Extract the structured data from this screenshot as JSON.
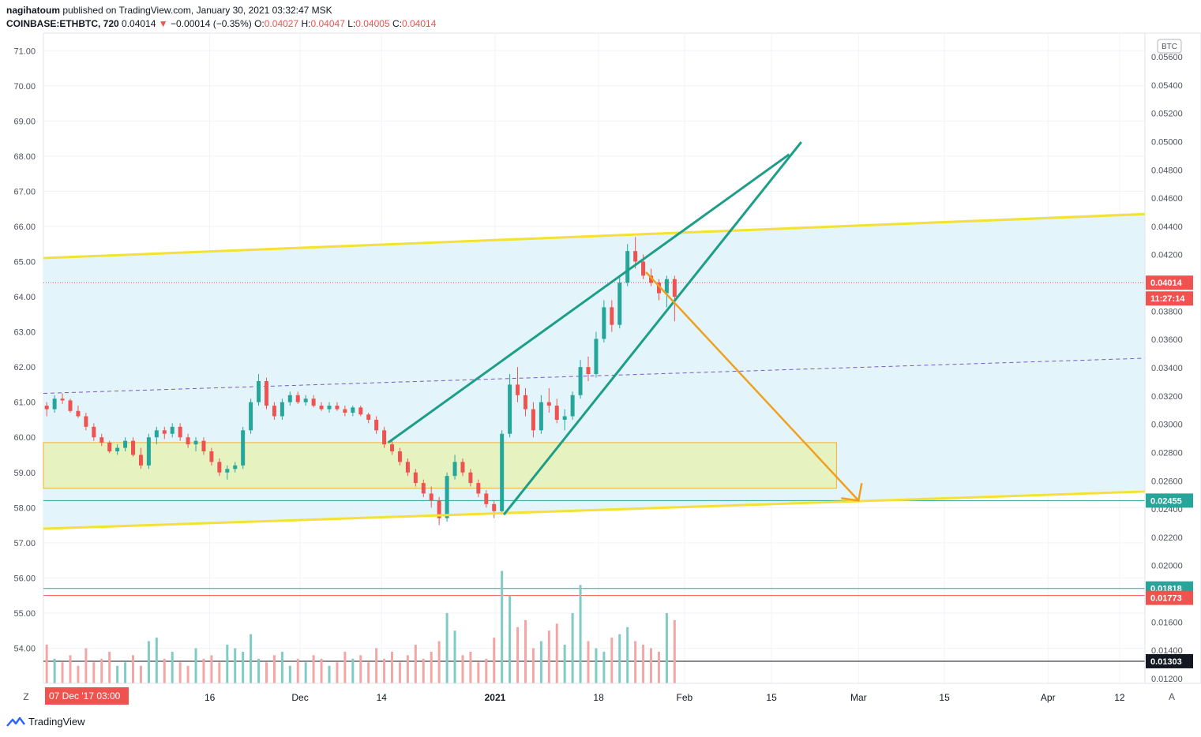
{
  "header": {
    "publisher": "nagihatoum",
    "published_text": "published on TradingView.com, January 30, 2021 03:32:47 MSK",
    "symbol": "COINBASE:ETHBTC, 720",
    "last": "0.04014",
    "change_arrow": "▼",
    "change": "−0.00014 (−0.35%)",
    "o_label": "O:",
    "o": "0.04027",
    "h_label": "H:",
    "h": "0.04047",
    "l_label": "L:",
    "l": "0.04005",
    "c_label": "C:",
    "c": "0.04014"
  },
  "footer": {
    "brand": "TradingView"
  },
  "controls": {
    "z_button": "Z",
    "a_button": "A"
  },
  "colors": {
    "up": "#26a69a",
    "down": "#ef5350",
    "yellow": "#f5e133",
    "teal_line": "#1e9e88",
    "orange": "#f0a020",
    "channel_fill": "#e3f5fa",
    "box_fill": "#e6f3c0",
    "purple_dash": "#7e57c2"
  },
  "chart_data": {
    "type": "candlestick",
    "symbol": "COINBASE:ETHBTC",
    "interval": "720",
    "currency": "BTC",
    "left_axis": {
      "range": [
        53.0,
        71.5
      ],
      "ticks": [
        "71.00",
        "70.00",
        "69.00",
        "68.00",
        "67.00",
        "66.00",
        "65.00",
        "64.00",
        "63.00",
        "62.00",
        "61.00",
        "60.00",
        "59.00",
        "58.00",
        "57.00",
        "56.00",
        "55.00",
        "54.00"
      ]
    },
    "right_axis": {
      "unit_label": "BTC",
      "ticks": [
        "0.05600",
        "0.05400",
        "0.05200",
        "0.05000",
        "0.04800",
        "0.04600",
        "0.04400",
        "0.04200",
        "0.04000",
        "0.03800",
        "0.03600",
        "0.03400",
        "0.03200",
        "0.03000",
        "0.02800",
        "0.02600",
        "0.02400",
        "0.02200",
        "0.02000",
        "0.01800",
        "0.01600",
        "0.01400",
        "0.01200"
      ]
    },
    "x_axis": {
      "ticks": [
        "16",
        "Dec",
        "14",
        "2021",
        "18",
        "Feb",
        "15",
        "Mar",
        "15",
        "Apr",
        "12"
      ],
      "bold_ticks": [
        "2021"
      ],
      "cursor_label": "07 Dec '17   03:00"
    },
    "price_labels": [
      {
        "text": "0.04014",
        "kind": "last",
        "color": "#ef5350"
      },
      {
        "text": "11:27:14",
        "kind": "countdown",
        "color": "#ef5350"
      },
      {
        "text": "0.02455",
        "kind": "teal-line",
        "color": "#26a69a"
      },
      {
        "text": "0.01818",
        "kind": "teal-line",
        "color": "#26a69a"
      },
      {
        "text": "0.01773",
        "kind": "red-line",
        "color": "#ef5350"
      },
      {
        "text": "0.01303",
        "kind": "black-line",
        "color": "#131722"
      }
    ],
    "candles": [
      [
        60.9,
        61.0,
        60.6,
        60.8
      ],
      [
        60.8,
        61.2,
        60.7,
        61.1
      ],
      [
        61.1,
        61.25,
        60.95,
        61.05
      ],
      [
        61.05,
        61.1,
        60.7,
        60.75
      ],
      [
        60.75,
        60.9,
        60.55,
        60.6
      ],
      [
        60.6,
        60.7,
        60.2,
        60.3
      ],
      [
        60.3,
        60.4,
        59.9,
        60.0
      ],
      [
        60.0,
        60.1,
        59.75,
        59.85
      ],
      [
        59.85,
        59.9,
        59.55,
        59.6
      ],
      [
        59.6,
        59.8,
        59.5,
        59.7
      ],
      [
        59.7,
        60.0,
        59.6,
        59.9
      ],
      [
        59.9,
        60.0,
        59.45,
        59.5
      ],
      [
        59.5,
        59.7,
        59.1,
        59.2
      ],
      [
        59.2,
        60.1,
        59.1,
        60.0
      ],
      [
        60.0,
        60.3,
        59.8,
        60.2
      ],
      [
        60.2,
        60.3,
        59.95,
        60.1
      ],
      [
        60.1,
        60.4,
        60.0,
        60.3
      ],
      [
        60.3,
        60.4,
        59.9,
        60.0
      ],
      [
        60.0,
        60.1,
        59.7,
        59.8
      ],
      [
        59.8,
        60.0,
        59.6,
        59.9
      ],
      [
        59.9,
        60.0,
        59.5,
        59.6
      ],
      [
        59.6,
        59.7,
        59.2,
        59.3
      ],
      [
        59.3,
        59.4,
        58.9,
        59.0
      ],
      [
        59.0,
        59.2,
        58.8,
        59.1
      ],
      [
        59.1,
        59.3,
        59.0,
        59.2
      ],
      [
        59.2,
        60.3,
        59.1,
        60.2
      ],
      [
        60.2,
        61.1,
        60.1,
        61.0
      ],
      [
        61.0,
        61.8,
        60.9,
        61.6
      ],
      [
        61.6,
        61.7,
        60.8,
        60.9
      ],
      [
        60.9,
        61.0,
        60.5,
        60.6
      ],
      [
        60.6,
        61.1,
        60.5,
        61.0
      ],
      [
        61.0,
        61.3,
        60.9,
        61.2
      ],
      [
        61.2,
        61.3,
        60.95,
        61.0
      ],
      [
        61.0,
        61.2,
        60.9,
        61.1
      ],
      [
        61.1,
        61.2,
        60.85,
        60.9
      ],
      [
        60.9,
        61.0,
        60.75,
        60.8
      ],
      [
        60.8,
        61.0,
        60.7,
        60.9
      ],
      [
        60.9,
        61.0,
        60.75,
        60.8
      ],
      [
        60.8,
        60.9,
        60.6,
        60.7
      ],
      [
        60.7,
        60.9,
        60.6,
        60.85
      ],
      [
        60.85,
        60.9,
        60.6,
        60.65
      ],
      [
        60.65,
        60.7,
        60.4,
        60.5
      ],
      [
        60.5,
        60.6,
        60.1,
        60.2
      ],
      [
        60.2,
        60.3,
        59.7,
        59.8
      ],
      [
        59.8,
        59.9,
        59.5,
        59.6
      ],
      [
        59.6,
        59.7,
        59.2,
        59.3
      ],
      [
        59.3,
        59.4,
        58.9,
        59.0
      ],
      [
        59.0,
        59.1,
        58.6,
        58.7
      ],
      [
        58.7,
        58.8,
        58.3,
        58.4
      ],
      [
        58.4,
        58.6,
        58.0,
        58.2
      ],
      [
        58.2,
        58.3,
        57.5,
        57.7
      ],
      [
        57.7,
        59.0,
        57.6,
        58.9
      ],
      [
        58.9,
        59.5,
        58.8,
        59.3
      ],
      [
        59.3,
        59.4,
        58.9,
        59.0
      ],
      [
        59.0,
        59.1,
        58.6,
        58.7
      ],
      [
        58.7,
        58.8,
        58.3,
        58.4
      ],
      [
        58.4,
        58.5,
        58.0,
        58.1
      ],
      [
        58.1,
        58.2,
        57.7,
        57.9
      ],
      [
        57.9,
        60.2,
        57.8,
        60.1
      ],
      [
        60.1,
        61.8,
        60.0,
        61.5
      ],
      [
        61.5,
        62.0,
        61.0,
        61.2
      ],
      [
        61.2,
        61.4,
        60.6,
        60.8
      ],
      [
        60.8,
        61.0,
        60.0,
        60.2
      ],
      [
        60.2,
        61.2,
        60.1,
        61.0
      ],
      [
        61.0,
        61.4,
        60.7,
        60.9
      ],
      [
        60.9,
        61.1,
        60.4,
        60.5
      ],
      [
        60.5,
        60.8,
        60.2,
        60.6
      ],
      [
        60.6,
        61.3,
        60.5,
        61.2
      ],
      [
        61.2,
        62.2,
        61.1,
        62.0
      ],
      [
        62.0,
        62.3,
        61.6,
        61.8
      ],
      [
        61.8,
        63.0,
        61.7,
        62.8
      ],
      [
        62.8,
        63.9,
        62.7,
        63.7
      ],
      [
        63.7,
        63.9,
        63.0,
        63.2
      ],
      [
        63.2,
        64.6,
        63.1,
        64.4
      ],
      [
        64.4,
        65.5,
        64.3,
        65.3
      ],
      [
        65.3,
        65.7,
        64.8,
        65.0
      ],
      [
        65.0,
        65.2,
        64.5,
        64.6
      ],
      [
        64.6,
        64.8,
        64.3,
        64.4
      ],
      [
        64.4,
        64.5,
        63.9,
        64.1
      ],
      [
        64.1,
        64.6,
        63.7,
        64.5
      ],
      [
        64.5,
        64.6,
        63.3,
        64.0
      ]
    ],
    "volume": [
      54.1,
      53.7,
      53.6,
      53.8,
      53.5,
      54.0,
      53.6,
      53.7,
      53.9,
      53.5,
      53.6,
      53.8,
      53.5,
      54.2,
      54.3,
      53.7,
      53.9,
      53.6,
      53.5,
      54.0,
      53.7,
      53.8,
      53.6,
      54.1,
      54.0,
      53.9,
      54.4,
      53.7,
      53.6,
      53.8,
      53.9,
      53.5,
      53.7,
      53.6,
      53.8,
      53.7,
      53.5,
      53.6,
      53.9,
      53.7,
      53.8,
      53.6,
      54.0,
      53.7,
      53.9,
      53.6,
      53.8,
      54.1,
      53.7,
      53.9,
      54.2,
      55.0,
      54.5,
      53.8,
      53.9,
      53.6,
      53.7,
      54.3,
      56.2,
      55.5,
      54.6,
      54.8,
      54.0,
      54.2,
      54.5,
      54.7,
      54.1,
      55.0,
      55.8,
      54.2,
      54.0,
      53.9,
      54.3,
      54.4,
      54.6,
      54.2,
      54.1,
      54.0,
      53.9,
      55.0,
      54.8
    ],
    "overlays": {
      "channel_upper_line": [
        [
          0,
          65.1
        ],
        [
          1,
          66.4
        ]
      ],
      "channel_lower_line": [
        [
          0,
          57.4
        ],
        [
          1,
          58.5
        ]
      ],
      "channel_midline_dashed": [
        [
          0,
          61.25
        ],
        [
          1,
          62.25
        ]
      ],
      "demand_box": {
        "top": 59.85,
        "bottom": 58.55
      },
      "wedge_upper": [
        [
          0.313,
          59.85
        ],
        [
          0.677,
          68.05
        ]
      ],
      "wedge_lower": [
        [
          0.418,
          57.8
        ],
        [
          0.688,
          68.4
        ]
      ],
      "target_arrow": [
        [
          0.547,
          64.7
        ],
        [
          0.74,
          58.2
        ]
      ],
      "horizontal_levels": [
        58.2,
        55.7,
        55.5,
        53.63
      ]
    }
  }
}
